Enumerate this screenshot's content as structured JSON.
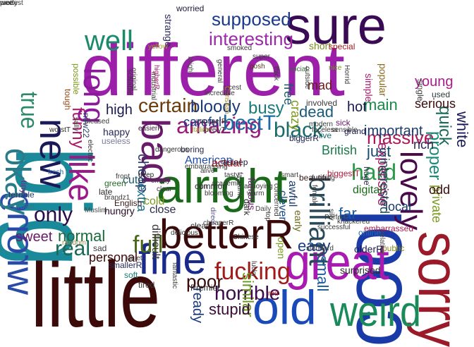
{
  "words": [
    {
      "text": "different",
      "color": "#9b1fa8"
    },
    {
      "text": "little",
      "color": "#3d0a0a"
    },
    {
      "text": "sure",
      "color": "#3a0a55"
    },
    {
      "text": "big",
      "color": "#1a8a9a"
    },
    {
      "text": "cool",
      "color": "#1a3aa8"
    },
    {
      "text": "sorry",
      "color": "#9a1a2a"
    },
    {
      "text": "alright",
      "color": "#1a6a1a"
    },
    {
      "text": "betterR",
      "color": "#3a0a0a"
    },
    {
      "text": "great",
      "color": "#a81ab0"
    },
    {
      "text": "fine",
      "color": "#1a2a8a"
    },
    {
      "text": "old",
      "color": "#1a4ab8"
    },
    {
      "text": "weird",
      "color": "#1a8a5a"
    },
    {
      "text": "wrong",
      "color": "#2a4aa8"
    },
    {
      "text": "well",
      "color": "#1a8a6a"
    },
    {
      "text": "new",
      "color": "#1a1a5a"
    },
    {
      "text": "like",
      "color": "#9a1a8a"
    },
    {
      "text": "okay",
      "color": "#2a7a8a"
    },
    {
      "text": "long",
      "color": "#8a1a9a"
    },
    {
      "text": "true",
      "color": "#2a8a6a"
    },
    {
      "text": "bad",
      "color": "#6a1a6a"
    },
    {
      "text": "lovely",
      "color": "#4a0a4a"
    },
    {
      "text": "brilliant",
      "color": "#2a4a5a"
    },
    {
      "text": "fucking",
      "color": "#a01a1a"
    },
    {
      "text": "full",
      "color": "#4a6a1a"
    },
    {
      "text": "only",
      "color": "#2a0a4a"
    },
    {
      "text": "hard",
      "color": "#2a9a4a"
    },
    {
      "text": "amazing",
      "color": "#9a1a7a"
    },
    {
      "text": "bestT",
      "color": "#1a6aa8"
    },
    {
      "text": "black",
      "color": "#1a6a6a"
    },
    {
      "text": "horrible",
      "color": "#3a0a4a"
    },
    {
      "text": "supposed",
      "color": "#1a3a8a"
    },
    {
      "text": "interesting",
      "color": "#9a2aa8"
    },
    {
      "text": "certain",
      "color": "#6a3a0a"
    },
    {
      "text": "bloody",
      "color": "#1a3a7a"
    },
    {
      "text": "busy",
      "color": "#1a7a7a"
    },
    {
      "text": "funny",
      "color": "#aa1a6a"
    },
    {
      "text": "massive",
      "color": "#aa1a5a"
    },
    {
      "text": "dead",
      "color": "#1a5a7a"
    },
    {
      "text": "main",
      "color": "#1a8a4a"
    },
    {
      "text": "quick",
      "color": "#1a6a5a"
    },
    {
      "text": "proper",
      "color": "#1a8a7a"
    },
    {
      "text": "white",
      "color": "#1a1a5a"
    },
    {
      "text": "important",
      "color": "#1a3a6a"
    },
    {
      "text": "real",
      "color": "#1a6a5a"
    },
    {
      "text": "normal",
      "color": "#1a6a3a"
    },
    {
      "text": "sweet",
      "color": "#6a1a6a"
    },
    {
      "text": "easy",
      "color": "#1a3a8a"
    },
    {
      "text": "far",
      "color": "#1a5a9a"
    },
    {
      "text": "expensive",
      "color": "#aa1a6a"
    },
    {
      "text": "just",
      "color": "#1a4a6a"
    },
    {
      "text": "rich",
      "color": "#2a2a5a"
    },
    {
      "text": "private",
      "color": "#7a9a1a"
    },
    {
      "text": "interested",
      "color": "#1a4a5a"
    },
    {
      "text": "local",
      "color": "#1a3a6a"
    },
    {
      "text": "poor",
      "color": "#3a0a0a"
    },
    {
      "text": "similar",
      "color": "#6a9a1a"
    },
    {
      "text": "stupid",
      "color": "#3a0a3a"
    },
    {
      "text": "ready",
      "color": "#1a3a7a"
    },
    {
      "text": "small",
      "color": "#1a5a9a"
    },
    {
      "text": "odd",
      "color": "#3a0a0a"
    },
    {
      "text": "high",
      "color": "#1a1a4a"
    },
    {
      "text": "hot",
      "color": "#1a1a4a"
    },
    {
      "text": "serious",
      "color": "#3a0a0a"
    },
    {
      "text": "young",
      "color": "#aa1a8a"
    },
    {
      "text": "free",
      "color": "#1a5a6a"
    },
    {
      "text": "crazy",
      "color": "#7a9a1a"
    },
    {
      "text": "mad",
      "color": "#6a1a1a"
    },
    {
      "text": "careful",
      "color": "#1a3a8a"
    },
    {
      "text": "cute",
      "color": "#1a5a6a"
    },
    {
      "text": "cheap",
      "color": "#2a3a6a"
    },
    {
      "text": "extra",
      "color": "#1a6a8a"
    },
    {
      "text": "difficult",
      "color": "#3a3a3a"
    },
    {
      "text": "personal",
      "color": "#3a0a0a"
    },
    {
      "text": "close",
      "color": "#2a2a4a"
    },
    {
      "text": "cold",
      "color": "#7a9a1a"
    },
    {
      "text": "American",
      "color": "#1a4aa8"
    },
    {
      "text": "actual",
      "color": "#aa1a1a"
    },
    {
      "text": "British",
      "color": "#1a7a4a"
    },
    {
      "text": "happy",
      "color": "#2a2a5a"
    },
    {
      "text": "hungry",
      "color": "#2a0a2a"
    },
    {
      "text": "English",
      "color": "#3a1a1a"
    },
    {
      "text": "digital",
      "color": "#1a6a1a"
    },
    {
      "text": "strange",
      "color": "#2a2a5a"
    },
    {
      "text": "short",
      "color": "#7a8a1a"
    },
    {
      "text": "special",
      "color": "#aa1a1a"
    },
    {
      "text": "simple",
      "color": "#aa1a6a"
    },
    {
      "text": "popular",
      "color": "#8a6a1a"
    },
    {
      "text": "boring",
      "color": "#2a2a4a"
    },
    {
      "text": "beautiful",
      "color": "#3a1a1a"
    },
    {
      "text": "awful",
      "color": "#1a3a6a"
    },
    {
      "text": "clever",
      "color": "#1a4a8a"
    },
    {
      "text": "famous",
      "color": "#6a1a6a"
    },
    {
      "text": "dark",
      "color": "#2a2a2a"
    },
    {
      "text": "early",
      "color": "#6a6a1a"
    },
    {
      "text": "open",
      "color": "#7a9a1a"
    },
    {
      "text": "surprised",
      "color": "#2a2a2a"
    },
    {
      "text": "olderR",
      "color": "#1a1a4a"
    },
    {
      "text": "terrible",
      "color": "#2a3a6a"
    },
    {
      "text": "urban",
      "color": "#2a7a8a"
    },
    {
      "text": "sad",
      "color": "#3a3a3a"
    },
    {
      "text": "soft",
      "color": "#1a7a6a"
    },
    {
      "text": "tired",
      "color": "#3a3a3a"
    },
    {
      "text": "worried",
      "color": "#1a1a3a"
    },
    {
      "text": "smoked",
      "color": "#3a3a3a"
    },
    {
      "text": "involved",
      "color": "#3a3a3a"
    },
    {
      "text": "sick",
      "color": "#6a1a6a"
    },
    {
      "text": "grand",
      "color": "#1a1a4a"
    },
    {
      "text": "live",
      "color": "#1a6a6a"
    },
    {
      "text": "biggerR",
      "color": "#1a1a4a"
    },
    {
      "text": "biggestT",
      "color": "#aa1a3a"
    },
    {
      "text": "huge",
      "color": "#2a2a4a"
    },
    {
      "text": "used",
      "color": "#2a3a3a"
    },
    {
      "text": "single",
      "color": "#3a3a3a"
    },
    {
      "text": "asleep",
      "color": "#1a1a3a"
    },
    {
      "text": "clean",
      "color": "#2a2a2a"
    },
    {
      "text": "common",
      "color": "#2a2a2a"
    },
    {
      "text": "late",
      "color": "#2a2a2a"
    },
    {
      "text": "green",
      "color": "#2a6a2a"
    },
    {
      "text": "deep",
      "color": "#1a1a1a"
    },
    {
      "text": "Premier",
      "color": "#2a2a2a"
    },
    {
      "text": "Chinese",
      "color": "#2a2a2a"
    },
    {
      "text": "embarrassed",
      "color": "#aa1a4a"
    },
    {
      "text": "public",
      "color": "#8a8a1a"
    },
    {
      "text": "online",
      "color": "#2a6aa8"
    },
    {
      "text": "general",
      "color": "#3a3a3a"
    },
    {
      "text": "smallerR",
      "color": "#2a2a5a"
    },
    {
      "text": "new22",
      "color": "#2a3a6a"
    },
    {
      "text": "worstT",
      "color": "#2a2a2a"
    },
    {
      "text": "useless",
      "color": "#7a7a9a"
    },
    {
      "text": "easierR",
      "color": "#3a1a3a"
    },
    {
      "text": "electric",
      "color": "#3a3a3a"
    },
    {
      "text": "fresh",
      "color": "#1a5aa8"
    },
    {
      "text": "embarrassing",
      "color": "#3a3a3a"
    },
    {
      "text": "brandz1",
      "color": "#3a3a3a"
    },
    {
      "text": "Muslim",
      "color": "#4a4a4a"
    },
    {
      "text": "tiny",
      "color": "#6a2a8a"
    },
    {
      "text": "random",
      "color": "#9a8a4a"
    },
    {
      "text": "quiet",
      "color": "#4a4a4a"
    },
    {
      "text": "scalable",
      "color": "#3a3a3a"
    },
    {
      "text": "industrial",
      "color": "#3a3a3a"
    },
    {
      "text": "original",
      "color": "#3a3a3a"
    },
    {
      "text": "possible",
      "color": "#7a9a1a"
    },
    {
      "text": "tough",
      "color": "#9a4a1a"
    },
    {
      "text": "yellow",
      "color": "#9a9a1a"
    },
    {
      "text": "super",
      "color": "#3a3a3a"
    },
    {
      "text": "posh",
      "color": "#5a3a1a"
    },
    {
      "text": "social",
      "color": "#3a6a3a"
    },
    {
      "text": "nice",
      "color": "#6a9a1a"
    },
    {
      "text": "dangerous",
      "color": "#2a2a2a"
    },
    {
      "text": "front",
      "color": "#3a3a3a"
    },
    {
      "text": "direct",
      "color": "#5a5a8a"
    },
    {
      "text": "delicious",
      "color": "#3a3a3a"
    },
    {
      "text": "blooming",
      "color": "#3a3a3a"
    },
    {
      "text": "bright",
      "color": "#4a4a4a"
    },
    {
      "text": "higherR",
      "color": "#aa1a6a"
    },
    {
      "text": "nicest",
      "color": "#3a3a3a"
    },
    {
      "text": "thick",
      "color": "#3a3a3a"
    },
    {
      "text": "outside",
      "color": "#3a3a3a"
    },
    {
      "text": "Horrid",
      "color": "#3a3a3a"
    },
    {
      "text": "warm",
      "color": "#3a3a3a"
    },
    {
      "text": "Daily",
      "color": "#4a4a4a"
    },
    {
      "text": "top",
      "color": "#3a3a3a"
    },
    {
      "text": "lucky",
      "color": "#3a3a3a"
    },
    {
      "text": "standard",
      "color": "#3a3a3a"
    },
    {
      "text": "relative",
      "color": "#4a4a4a"
    },
    {
      "text": "successful",
      "color": "#3a3a3a"
    },
    {
      "text": "Perfect",
      "color": "#3a3a3a"
    },
    {
      "text": "knackered",
      "color": "#3a3a3a"
    },
    {
      "text": "smart",
      "color": "#3a3a3a"
    },
    {
      "text": "concerned",
      "color": "#3a3a3a"
    },
    {
      "text": "modern",
      "color": "#3a3a3a"
    },
    {
      "text": "faceless",
      "color": "#3a3a3a"
    },
    {
      "text": "fantastic",
      "color": "#3a3a3a"
    },
    {
      "text": "youngerR",
      "color": "#3a3a3a"
    },
    {
      "text": "Italian",
      "color": "#9a9a1a"
    },
    {
      "text": "lovelyT",
      "color": "#3a3a3a"
    },
    {
      "text": "Christian",
      "color": "#aa8a1a"
    },
    {
      "text": "incredible",
      "color": "#3a3a3a"
    },
    {
      "text": "pleased",
      "color": "#3a3a3a"
    },
    {
      "text": "sally",
      "color": "#3a3a3a"
    },
    {
      "text": "sensible",
      "color": "#3a3a3a"
    },
    {
      "text": "funning",
      "color": "#3a3a3a"
    },
    {
      "text": "female",
      "color": "#3a3a3a"
    },
    {
      "text": "silly",
      "color": "#3a3a3a"
    },
    {
      "text": "red",
      "color": "#aa1a1a"
    },
    {
      "text": "annoying",
      "color": "#3a3a3a"
    },
    {
      "text": "favourite",
      "color": "#3a3a3a"
    },
    {
      "text": "tasty",
      "color": "#3a3a3a"
    },
    {
      "text": "fun",
      "color": "#3a3a3a"
    },
    {
      "text": "alive",
      "color": "#3a3a3a"
    },
    {
      "text": "academic",
      "color": "#3a3a3a"
    },
    {
      "text": "cheaperR",
      "color": "#3a3a3a"
    },
    {
      "text": "empty",
      "color": "#3a3a3a"
    },
    {
      "text": "clear",
      "color": "#3a3a3a"
    },
    {
      "text": "pretty",
      "color": "#3a3a3a"
    },
    {
      "text": "wee",
      "color": "#3a3a3a"
    },
    {
      "text": "modest",
      "color": "#3a3a3a"
    },
    {
      "text": "stupidest",
      "color": "#3a3a3a"
    }
  ]
}
